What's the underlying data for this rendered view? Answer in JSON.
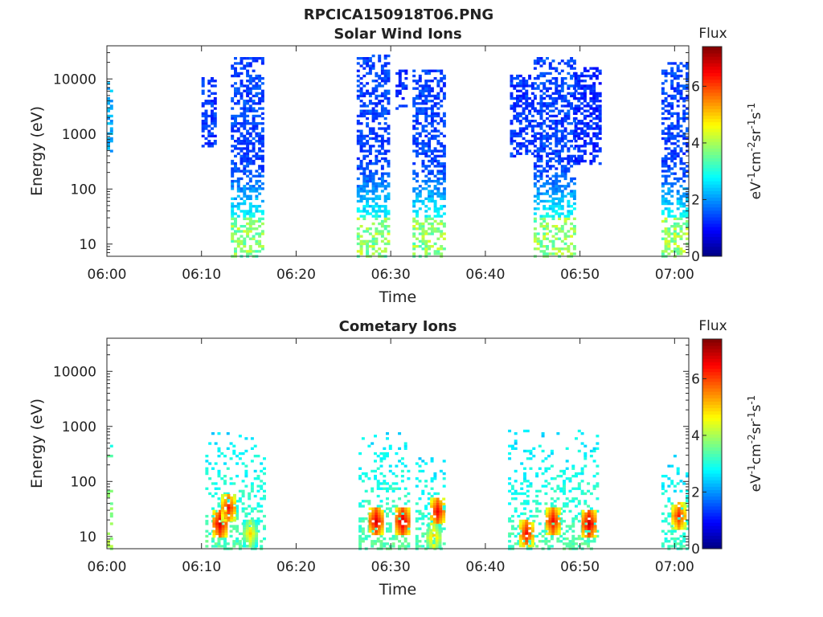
{
  "figure": {
    "title": "RPCICA150918T06.PNG"
  },
  "colorbar": {
    "title": "Flux",
    "label_base": "eV",
    "label_exp1": "-1",
    "label_cm": "cm",
    "label_exp2": "-2",
    "label_sr": "sr",
    "label_exp3": "-1",
    "label_s": "s",
    "label_exp4": "-1",
    "ticks": [
      "0",
      "2",
      "4",
      "6"
    ],
    "range": [
      0,
      7.4
    ],
    "colormap": "jet"
  },
  "axes": {
    "xlabel": "Time",
    "ylabel": "Energy (eV)",
    "x_tick_labels": [
      "06:00",
      "06:10",
      "06:20",
      "06:30",
      "06:40",
      "06:50",
      "07:00"
    ],
    "y_tick_labels": [
      "10",
      "100",
      "1000",
      "10000"
    ],
    "x_range_minutes": [
      0,
      61.5
    ],
    "y_range_eV": [
      6,
      40000
    ],
    "yscale": "log"
  },
  "chart_data": [
    {
      "type": "heatmap",
      "title": "Solar Wind Ions",
      "x": "minutes after 06:00",
      "y": "Energy (eV)",
      "bursts": [
        {
          "t": [
            0.0,
            0.6
          ],
          "e": [
            500,
            9000
          ],
          "flux": 2.2
        },
        {
          "t": [
            10.0,
            11.6
          ],
          "e": [
            600,
            11000
          ],
          "flux": 1.3
        },
        {
          "t": [
            13.1,
            16.5
          ],
          "e": [
            6,
            25000
          ],
          "flux": 1.4
        },
        {
          "t": [
            26.4,
            29.8
          ],
          "e": [
            6,
            28000
          ],
          "flux": 1.4
        },
        {
          "t": [
            30.5,
            31.5
          ],
          "e": [
            3000,
            15000
          ],
          "flux": 1.2
        },
        {
          "t": [
            32.3,
            35.8
          ],
          "e": [
            6,
            15000
          ],
          "flux": 1.4
        },
        {
          "t": [
            42.6,
            45.0
          ],
          "e": [
            400,
            12000
          ],
          "flux": 1.3
        },
        {
          "t": [
            45.1,
            49.3
          ],
          "e": [
            6,
            27000
          ],
          "flux": 1.4
        },
        {
          "t": [
            49.4,
            52.0
          ],
          "e": [
            300,
            17000
          ],
          "flux": 1.2
        },
        {
          "t": [
            58.6,
            61.3
          ],
          "e": [
            6,
            22000
          ],
          "flux": 1.4
        }
      ]
    },
    {
      "type": "heatmap",
      "title": "Cometary Ions",
      "x": "minutes after 06:00",
      "y": "Energy (eV)",
      "bursts": [
        {
          "t": [
            0.0,
            0.6
          ],
          "e": [
            6,
            550
          ],
          "flux": 3.2
        },
        {
          "t": [
            10.4,
            16.5
          ],
          "e": [
            6,
            900
          ],
          "flux": 2.6
        },
        {
          "t": [
            26.6,
            31.8
          ],
          "e": [
            6,
            950
          ],
          "flux": 2.6
        },
        {
          "t": [
            32.6,
            35.8
          ],
          "e": [
            6,
            300
          ],
          "flux": 2.6
        },
        {
          "t": [
            42.4,
            45.4
          ],
          "e": [
            6,
            950
          ],
          "flux": 2.5
        },
        {
          "t": [
            45.6,
            52.0
          ],
          "e": [
            6,
            900
          ],
          "flux": 2.6
        },
        {
          "t": [
            58.6,
            61.3
          ],
          "e": [
            6,
            320
          ],
          "flux": 2.5
        }
      ],
      "peaks": [
        {
          "t": 11.8,
          "e": 18,
          "flux": 6.8
        },
        {
          "t": 12.7,
          "e": 35,
          "flux": 6.4
        },
        {
          "t": 15.0,
          "e": 12,
          "flux": 5.0
        },
        {
          "t": 28.3,
          "e": 20,
          "flux": 6.8
        },
        {
          "t": 31.1,
          "e": 20,
          "flux": 6.9
        },
        {
          "t": 34.8,
          "e": 30,
          "flux": 6.6
        },
        {
          "t": 34.4,
          "e": 10,
          "flux": 5.2
        },
        {
          "t": 44.2,
          "e": 12,
          "flux": 6.5
        },
        {
          "t": 47.0,
          "e": 20,
          "flux": 6.6
        },
        {
          "t": 50.8,
          "e": 18,
          "flux": 6.9
        },
        {
          "t": 60.3,
          "e": 25,
          "flux": 6.3
        }
      ]
    }
  ]
}
